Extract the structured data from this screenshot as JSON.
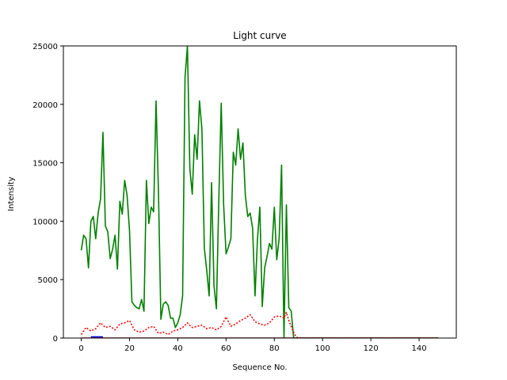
{
  "chart_data": {
    "type": "line",
    "title": "Light curve",
    "xlabel": "Sequence No.",
    "ylabel": "Intensity",
    "xlim": [
      -7.4,
      155.4
    ],
    "ylim": [
      0,
      25000
    ],
    "xticks": [
      0,
      20,
      40,
      60,
      80,
      100,
      120,
      140
    ],
    "yticks": [
      0,
      5000,
      10000,
      15000,
      20000,
      25000
    ],
    "grid": false,
    "series": [
      {
        "color": "#008000",
        "style": "solid",
        "x": [
          0,
          1,
          2,
          3,
          4,
          5,
          6,
          7,
          8,
          9,
          10,
          11,
          12,
          13,
          14,
          15,
          16,
          17,
          18,
          19,
          20,
          21,
          22,
          23,
          24,
          25,
          26,
          27,
          28,
          29,
          30,
          31,
          32,
          33,
          34,
          35,
          36,
          37,
          38,
          39,
          40,
          41,
          42,
          43,
          44,
          45,
          46,
          47,
          48,
          49,
          50,
          51,
          52,
          53,
          54,
          55,
          56,
          57,
          58,
          59,
          60,
          61,
          62,
          63,
          64,
          65,
          66,
          67,
          68,
          69,
          70,
          71,
          72,
          73,
          74,
          75,
          76,
          77,
          78,
          79,
          80,
          81,
          82,
          83,
          84,
          85,
          86,
          87,
          88,
          89,
          90,
          91,
          92,
          95,
          100,
          110,
          120,
          130,
          140,
          148
        ],
        "y": [
          7500,
          8800,
          8500,
          6000,
          10000,
          10400,
          8500,
          10700,
          11900,
          17600,
          9600,
          9100,
          6800,
          7600,
          8800,
          5900,
          11700,
          10600,
          13500,
          12200,
          9200,
          3100,
          2800,
          2600,
          2500,
          3300,
          2300,
          13500,
          9800,
          11200,
          10800,
          20300,
          12500,
          1600,
          2900,
          3100,
          2800,
          1700,
          1700,
          900,
          1300,
          2000,
          3600,
          22300,
          25000,
          14500,
          12300,
          17400,
          15300,
          20300,
          17900,
          7700,
          5800,
          3600,
          13300,
          4500,
          2500,
          11800,
          20100,
          11400,
          7200,
          7800,
          8500,
          15900,
          14800,
          17900,
          15300,
          16700,
          12200,
          10400,
          10700,
          9400,
          3600,
          8400,
          11200,
          2700,
          6000,
          7000,
          8100,
          7600,
          11200,
          6700,
          8500,
          14800,
          0,
          11400,
          2600,
          2300,
          0,
          0,
          0,
          0,
          0,
          0,
          0,
          0,
          0,
          0,
          0,
          0
        ]
      },
      {
        "color": "#ff0000",
        "style": "dotted",
        "x": [
          0,
          2,
          4,
          6,
          8,
          10,
          12,
          14,
          16,
          18,
          20,
          22,
          24,
          26,
          28,
          30,
          32,
          34,
          36,
          38,
          40,
          42,
          44,
          46,
          48,
          50,
          52,
          54,
          56,
          58,
          60,
          62,
          64,
          66,
          68,
          70,
          72,
          74,
          76,
          78,
          80,
          82,
          84,
          85,
          86,
          87,
          88,
          89,
          90,
          92,
          100,
          120,
          140,
          148
        ],
        "y": [
          300,
          900,
          600,
          800,
          1300,
          900,
          1000,
          700,
          1200,
          1300,
          1500,
          700,
          500,
          600,
          900,
          1000,
          400,
          500,
          300,
          600,
          700,
          900,
          1300,
          900,
          1000,
          1100,
          800,
          900,
          700,
          1000,
          1800,
          1000,
          1200,
          1500,
          1700,
          2000,
          1400,
          1200,
          1100,
          1300,
          1800,
          1900,
          1700,
          2200,
          1500,
          1000,
          500,
          100,
          0,
          0,
          0,
          0,
          0,
          0
        ]
      },
      {
        "color": "#0000ff",
        "style": "solid",
        "x": [
          4,
          5,
          6,
          7,
          8,
          9
        ],
        "y": [
          100,
          100,
          100,
          100,
          100,
          100
        ]
      },
      {
        "color": "#8b0000",
        "style": "solid",
        "x": [
          0,
          20,
          40,
          60,
          80,
          100,
          120,
          140,
          148
        ],
        "y": [
          0,
          0,
          0,
          0,
          0,
          0,
          0,
          0,
          0
        ]
      }
    ]
  }
}
